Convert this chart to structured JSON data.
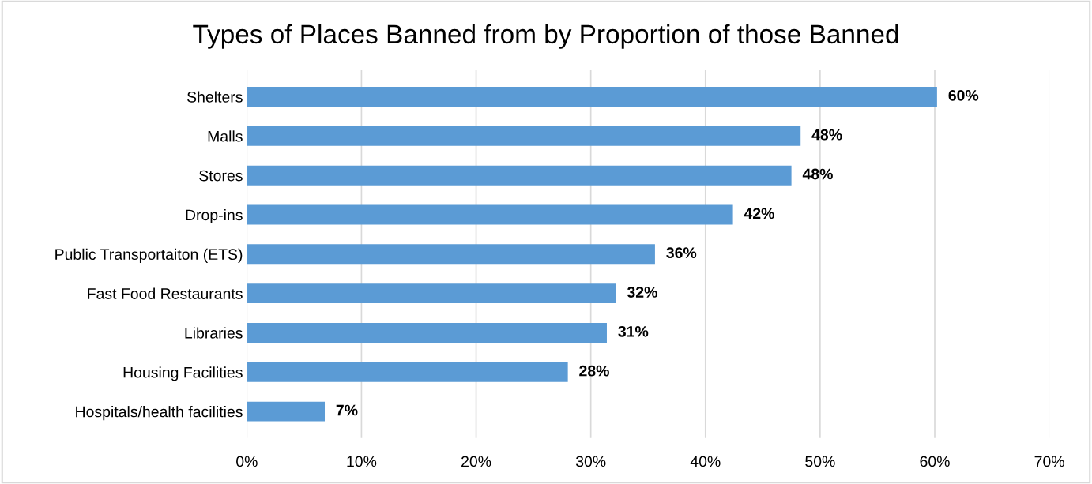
{
  "chart_data": {
    "type": "bar",
    "orientation": "horizontal",
    "title": "Types of Places Banned from by Proportion of those Banned",
    "categories": [
      "Shelters",
      "Malls",
      "Stores",
      "Drop-ins",
      "Public Transportaiton (ETS)",
      "Fast Food Restaurants",
      "Libraries",
      "Housing Facilities",
      "Hospitals/health facilities"
    ],
    "values": [
      60.2,
      48.3,
      47.5,
      42.4,
      35.6,
      32.2,
      31.4,
      28.0,
      6.8
    ],
    "value_labels": [
      "60%",
      "48%",
      "48%",
      "42%",
      "36%",
      "32%",
      "31%",
      "28%",
      "7%"
    ],
    "color": "#5b9bd5",
    "xlim": [
      0,
      70
    ],
    "xticks": [
      {
        "value": 0,
        "label": "0%"
      },
      {
        "value": 10,
        "label": "10%"
      },
      {
        "value": 20,
        "label": "20%"
      },
      {
        "value": 30,
        "label": "30%"
      },
      {
        "value": 40,
        "label": "40%"
      },
      {
        "value": 50,
        "label": "50%"
      },
      {
        "value": 60,
        "label": "60%"
      },
      {
        "value": 70,
        "label": "70%"
      }
    ],
    "grid": "x",
    "legend": false
  }
}
